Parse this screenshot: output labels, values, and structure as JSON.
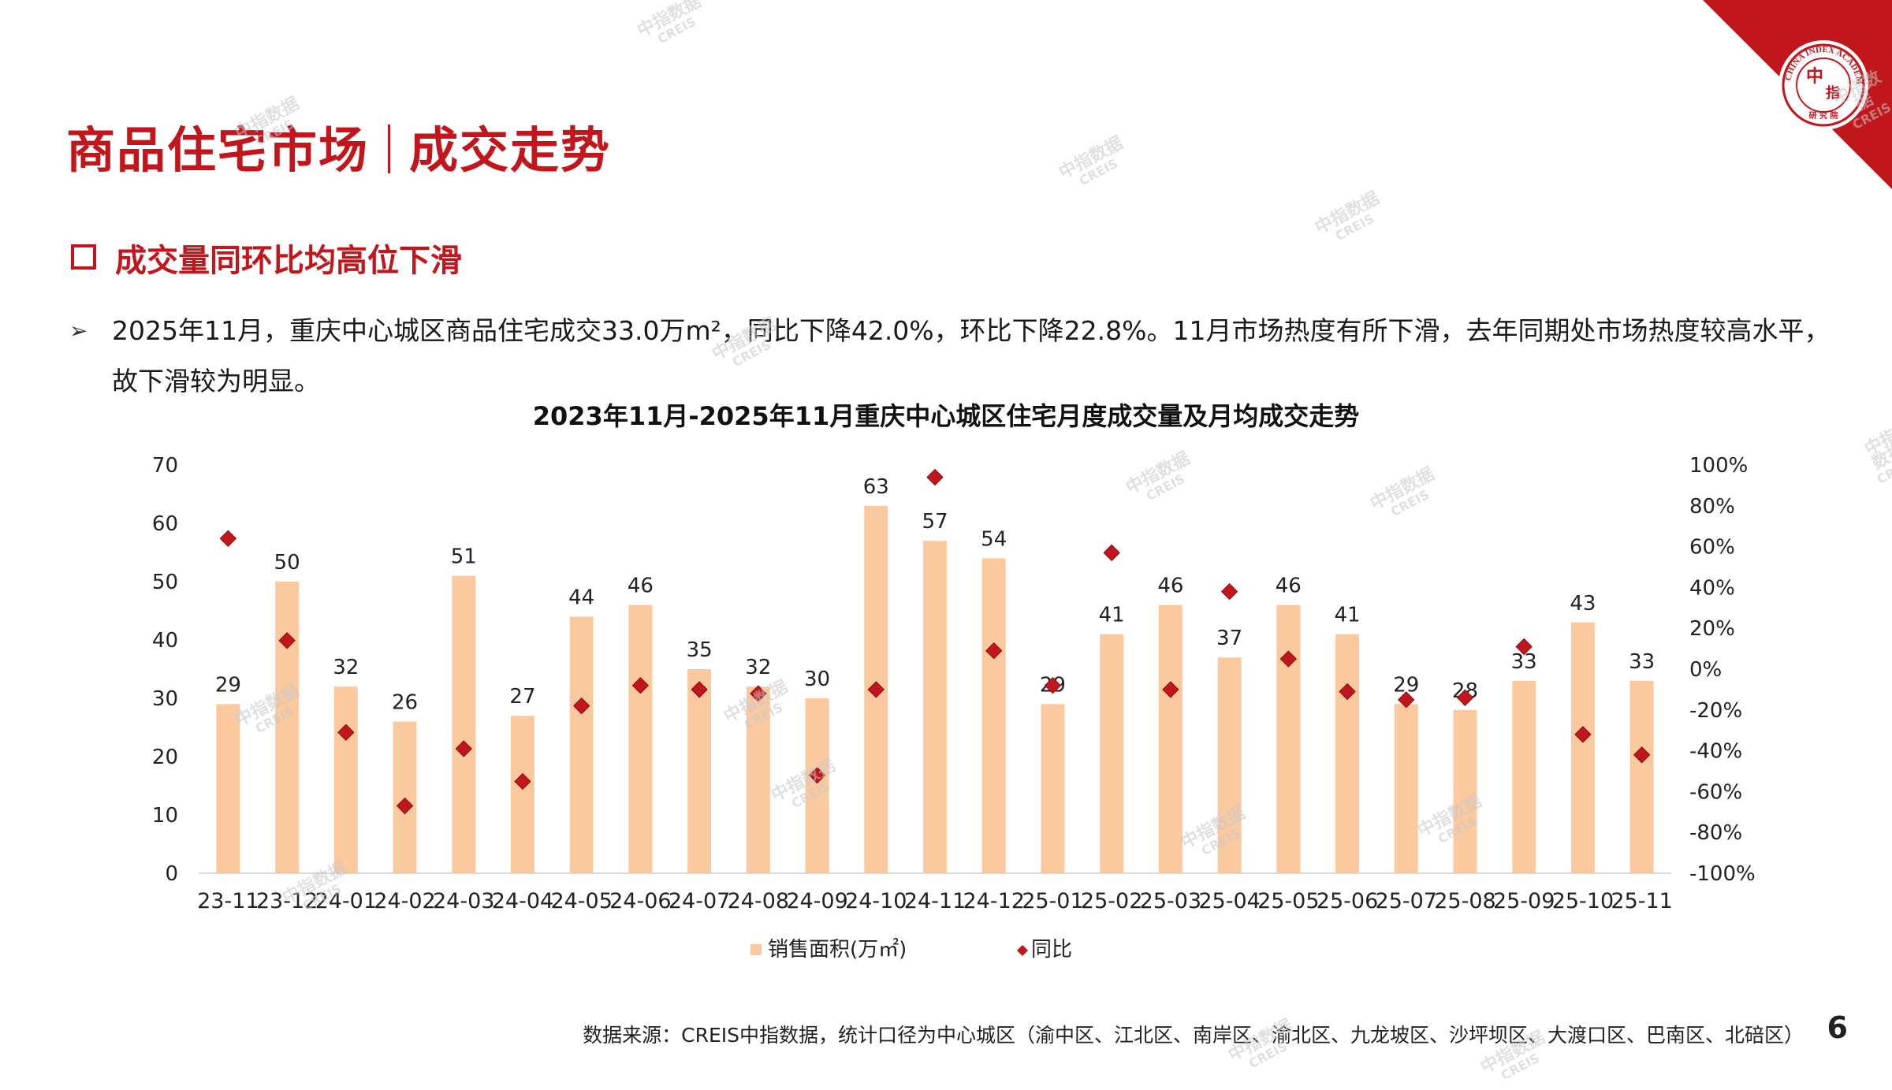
{
  "header": {
    "title_left": "商品住宅市场",
    "title_right": "成交走势"
  },
  "section": {
    "heading": "成交量同环比均高位下滑",
    "bullet": "2025年11月，重庆中心城区商品住宅成交33.0万m²，同比下降42.0%，环比下降22.8%。11月市场热度有所下滑，去年同期处市场热度较高水平，故下滑较为明显。"
  },
  "chart_data": {
    "type": "bar",
    "title": "2023年11月-2025年11月重庆中心城区住宅月度成交量及月均成交走势",
    "categories": [
      "23-11",
      "23-12",
      "24-01",
      "24-02",
      "24-03",
      "24-04",
      "24-05",
      "24-06",
      "24-07",
      "24-08",
      "24-09",
      "24-10",
      "24-11",
      "24-12",
      "25-01",
      "25-02",
      "25-03",
      "25-04",
      "25-05",
      "25-06",
      "25-07",
      "25-08",
      "25-09",
      "25-10",
      "25-11"
    ],
    "series": [
      {
        "name": "销售面积(万㎡)",
        "type": "bar",
        "axis": "left",
        "color": "#fac99e",
        "values": [
          29,
          50,
          32,
          26,
          51,
          27,
          44,
          46,
          35,
          32,
          30,
          63,
          57,
          54,
          29,
          41,
          46,
          37,
          46,
          41,
          29,
          28,
          33,
          43,
          33
        ]
      },
      {
        "name": "同比",
        "type": "scatter",
        "axis": "right",
        "marker": "diamond",
        "color": "#c0161c",
        "values": [
          64,
          14,
          -31,
          -67,
          -39,
          -55,
          -18,
          -8,
          -10,
          -12,
          -52,
          -10,
          94,
          9,
          -8,
          57,
          -10,
          38,
          5,
          -11,
          -15,
          -14,
          11,
          -32,
          -42
        ]
      }
    ],
    "y_left": {
      "min": 0,
      "max": 70,
      "ticks": [
        0,
        10,
        20,
        30,
        40,
        50,
        60,
        70
      ]
    },
    "y_right": {
      "min": -100,
      "max": 100,
      "ticks": [
        "-100%",
        "-80%",
        "-60%",
        "-40%",
        "-20%",
        "0%",
        "20%",
        "40%",
        "60%",
        "80%",
        "100%"
      ]
    },
    "legend_position": "bottom",
    "grid": false
  },
  "footer": {
    "source": "数据来源：CREIS中指数据，统计口径为中心城区（渝中区、江北区、南岸区、渝北区、九龙坡区、沙坪坝区、大渡口区、巴南区、北碚区）",
    "page_number": "6"
  },
  "logo": {
    "ring_text": "CHINA INDEX ACADEMY",
    "chars": [
      "中",
      "指"
    ],
    "bottom_text": "研 究 院",
    "color": "#c0161c"
  },
  "watermark": {
    "cn": "中指数据",
    "en": "CREIS"
  }
}
